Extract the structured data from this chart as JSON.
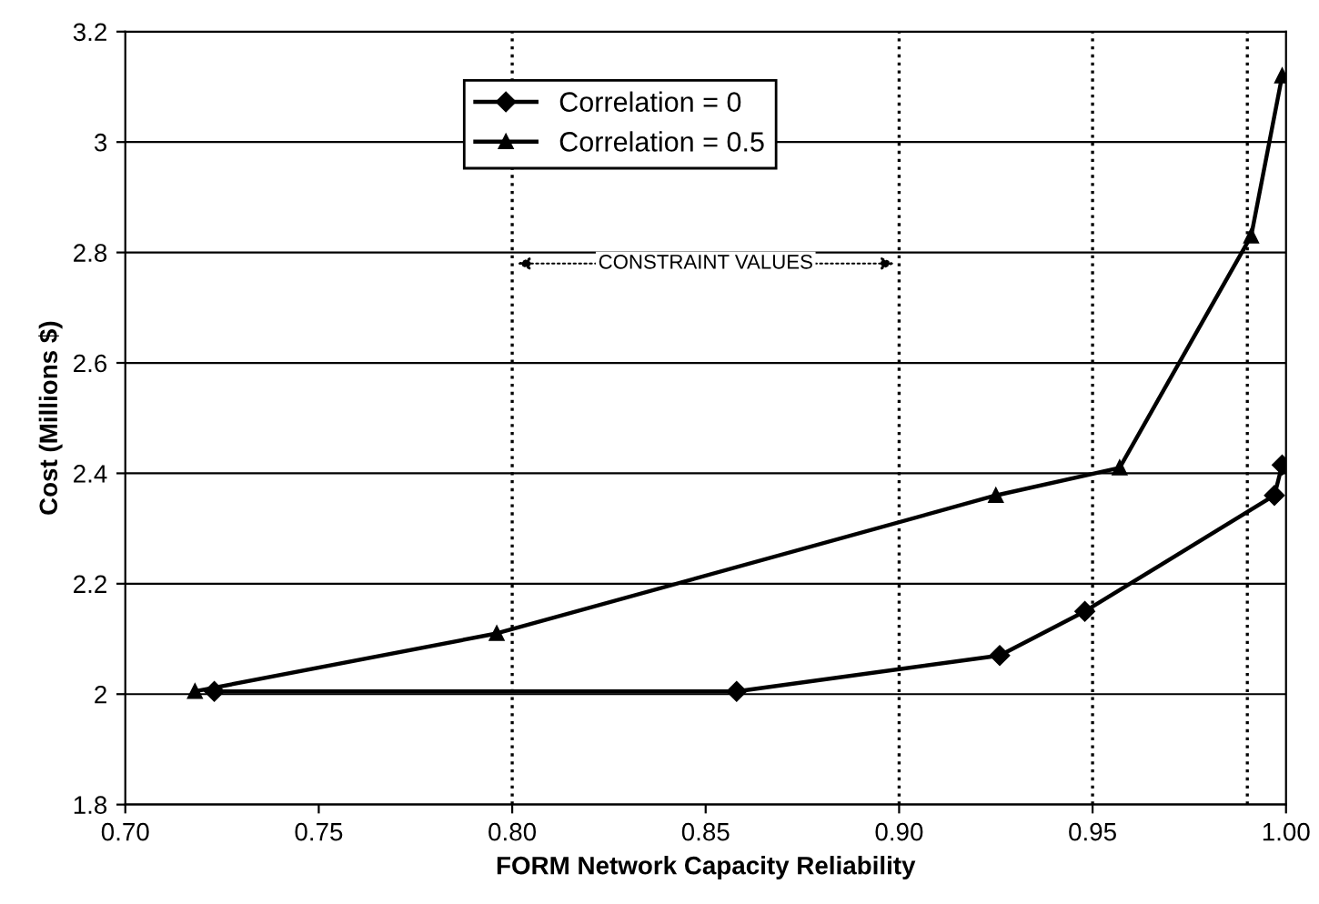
{
  "chart_data": {
    "type": "line",
    "xlabel": "FORM Network Capacity Reliability",
    "ylabel": "Cost (Millions $)",
    "series": [
      {
        "name": "Correlation = 0",
        "color": "#000000",
        "marker": "diamond",
        "x": [
          0.723,
          0.858,
          0.926,
          0.948,
          0.997,
          0.999
        ],
        "values": [
          2.005,
          2.005,
          2.07,
          2.15,
          2.36,
          2.415
        ]
      },
      {
        "name": "Correlation = 0.5",
        "color": "#000000",
        "marker": "triangle",
        "x": [
          0.718,
          0.796,
          0.925,
          0.957,
          0.991,
          0.999
        ],
        "values": [
          2.005,
          2.11,
          2.36,
          2.41,
          2.83,
          3.12
        ]
      }
    ],
    "xlim": [
      0.7,
      1.0
    ],
    "xticks": [
      {
        "value": 0.7,
        "label": "0.70"
      },
      0.75,
      {
        "value": 0.8,
        "label": "0.80"
      },
      0.85,
      {
        "value": 0.9,
        "label": "0.90"
      },
      0.95,
      {
        "value": 1.0,
        "label": "1.00"
      }
    ],
    "ylim": [
      1.8,
      3.2
    ],
    "yticks": [
      1.8,
      2,
      2.2,
      2.4,
      2.6,
      2.8,
      3,
      3.2
    ],
    "grid": "y",
    "legend": "top",
    "line_style": "solid",
    "ref_lines": [
      {
        "axis": "x",
        "value": 0.8,
        "line_style": "dotted",
        "color": "#000000"
      },
      {
        "axis": "x",
        "value": 0.9,
        "line_style": "dotted",
        "color": "#000000"
      },
      {
        "axis": "x",
        "value": 0.95,
        "line_style": "dotted",
        "color": "#000000"
      },
      {
        "axis": "x",
        "value": 0.99,
        "line_style": "dotted",
        "color": "#000000"
      }
    ],
    "annotations": [
      "CONSTRAINT VALUES"
    ]
  }
}
